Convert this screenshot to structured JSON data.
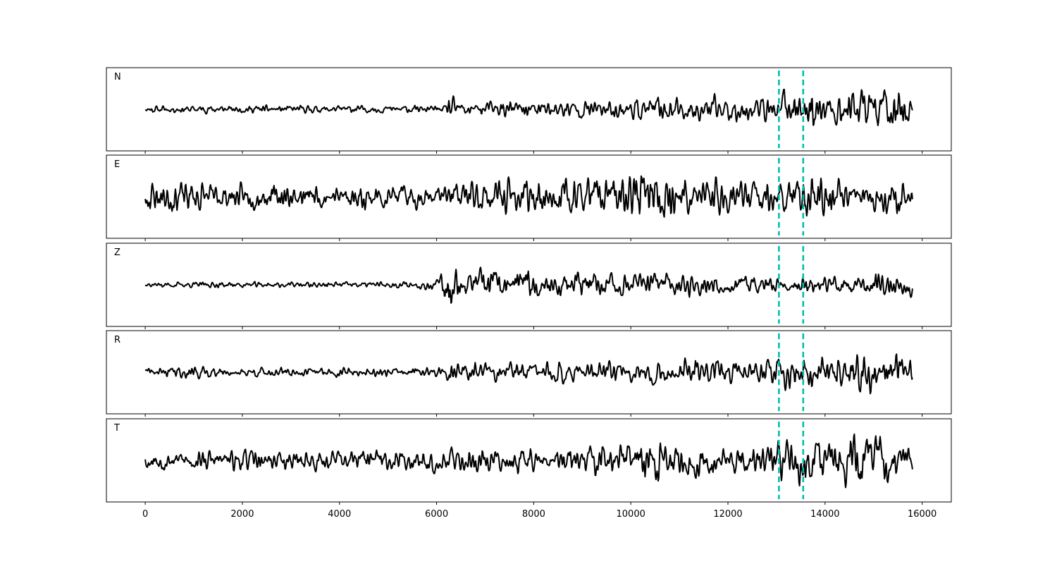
{
  "chart_data": {
    "type": "line",
    "title": "",
    "xlabel": "",
    "ylabel": "",
    "xlim": [
      -800,
      16600
    ],
    "x_ticks": [
      0,
      2000,
      4000,
      6000,
      8000,
      10000,
      12000,
      14000,
      16000
    ],
    "x_tick_labels": [
      "0",
      "2000",
      "4000",
      "6000",
      "8000",
      "10000",
      "12000",
      "14000",
      "16000"
    ],
    "grid": false,
    "legend": "none",
    "sample_range": [
      0,
      15800
    ],
    "markers": {
      "color": "#00bfae",
      "style": "dashed",
      "x": [
        13050,
        13550
      ]
    },
    "series": [
      {
        "label": "N",
        "color": "#000000",
        "ylim": [
          -1,
          1
        ],
        "envelope": [
          [
            0,
            0.07
          ],
          [
            6200,
            0.07
          ],
          [
            6250,
            0.3
          ],
          [
            6400,
            0.15
          ],
          [
            9000,
            0.17
          ],
          [
            10000,
            0.18
          ],
          [
            10600,
            0.22
          ],
          [
            11000,
            0.25
          ],
          [
            12900,
            0.22
          ],
          [
            13100,
            0.4
          ],
          [
            13600,
            0.42
          ],
          [
            14000,
            0.32
          ],
          [
            14700,
            0.48
          ],
          [
            15300,
            0.44
          ],
          [
            15800,
            0.36
          ]
        ],
        "seed": 11
      },
      {
        "label": "E",
        "color": "#000000",
        "ylim": [
          -1,
          1
        ],
        "envelope": [
          [
            0,
            0.3
          ],
          [
            1100,
            0.36
          ],
          [
            1300,
            0.22
          ],
          [
            6200,
            0.22
          ],
          [
            6300,
            0.28
          ],
          [
            8000,
            0.34
          ],
          [
            10000,
            0.38
          ],
          [
            10500,
            0.46
          ],
          [
            11000,
            0.36
          ],
          [
            13000,
            0.32
          ],
          [
            13800,
            0.4
          ],
          [
            14600,
            0.26
          ],
          [
            15700,
            0.32
          ],
          [
            15800,
            0.26
          ]
        ],
        "seed": 23
      },
      {
        "label": "Z",
        "color": "#000000",
        "ylim": [
          -1,
          1
        ],
        "envelope": [
          [
            0,
            0.05
          ],
          [
            5500,
            0.06
          ],
          [
            6000,
            0.1
          ],
          [
            6250,
            0.46
          ],
          [
            6500,
            0.28
          ],
          [
            8000,
            0.26
          ],
          [
            9000,
            0.24
          ],
          [
            12000,
            0.2
          ],
          [
            13000,
            0.16
          ],
          [
            14000,
            0.18
          ],
          [
            14600,
            0.2
          ],
          [
            15500,
            0.24
          ],
          [
            15800,
            0.18
          ]
        ],
        "seed": 37
      },
      {
        "label": "R",
        "color": "#000000",
        "ylim": [
          -1,
          1
        ],
        "envelope": [
          [
            0,
            0.08
          ],
          [
            1000,
            0.14
          ],
          [
            1400,
            0.1
          ],
          [
            6200,
            0.1
          ],
          [
            6250,
            0.34
          ],
          [
            6400,
            0.2
          ],
          [
            10000,
            0.22
          ],
          [
            11000,
            0.28
          ],
          [
            12900,
            0.22
          ],
          [
            13100,
            0.42
          ],
          [
            13600,
            0.4
          ],
          [
            14000,
            0.3
          ],
          [
            14700,
            0.48
          ],
          [
            15400,
            0.4
          ],
          [
            15800,
            0.32
          ]
        ],
        "seed": 41
      },
      {
        "label": "T",
        "color": "#000000",
        "ylim": [
          -1,
          1
        ],
        "envelope": [
          [
            0,
            0.16
          ],
          [
            4000,
            0.18
          ],
          [
            6000,
            0.2
          ],
          [
            9000,
            0.24
          ],
          [
            10000,
            0.3
          ],
          [
            10500,
            0.4
          ],
          [
            11000,
            0.34
          ],
          [
            12900,
            0.26
          ],
          [
            13500,
            0.42
          ],
          [
            14000,
            0.3
          ],
          [
            14700,
            0.48
          ],
          [
            15300,
            0.36
          ],
          [
            15800,
            0.3
          ]
        ],
        "seed": 53
      }
    ]
  }
}
